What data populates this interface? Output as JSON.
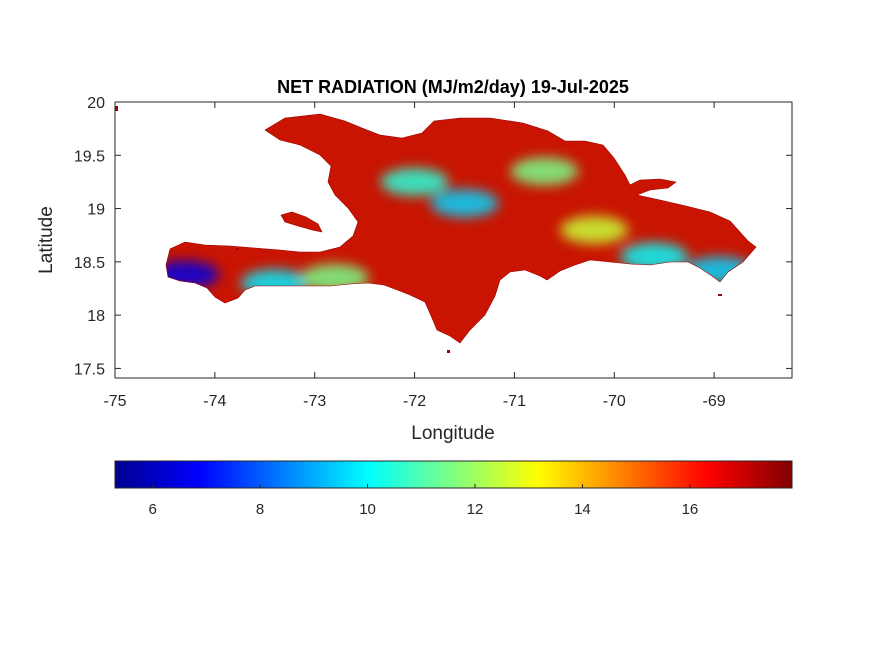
{
  "title": "NET RADIATION (MJ/m2/day) 19-Jul-2025",
  "xlabel": "Longitude",
  "ylabel": "Latitude",
  "x_ticks": [
    "-75",
    "-74",
    "-73",
    "-72",
    "-71",
    "-70",
    "-69"
  ],
  "y_ticks": [
    "20",
    "19.5",
    "19",
    "18.5",
    "18",
    "17.5"
  ],
  "colorbar": {
    "colormap": "jet",
    "range": [
      5.3,
      17.9
    ],
    "tick_labels": [
      "6",
      "8",
      "10",
      "12",
      "14",
      "16"
    ],
    "tick_values": [
      6,
      8,
      10,
      12,
      14,
      16
    ]
  },
  "chart_data": {
    "type": "heatmap",
    "title": "NET RADIATION (MJ/m2/day) 19-Jul-2025",
    "xlabel": "Longitude",
    "ylabel": "Latitude",
    "xlim": [
      -75,
      -68.22
    ],
    "ylim": [
      17.41,
      20
    ],
    "value_range": [
      5.3,
      17.9
    ],
    "grid": false,
    "region": "Hispaniola",
    "hotspots": [
      {
        "lon": -74.3,
        "lat": 18.38,
        "value": 6.5
      },
      {
        "lon": -71.5,
        "lat": 19.05,
        "value": 9.5
      },
      {
        "lon": -72.0,
        "lat": 19.25,
        "value": 10.5
      },
      {
        "lon": -69.6,
        "lat": 18.55,
        "value": 10.0
      },
      {
        "lon": -68.95,
        "lat": 18.42,
        "value": 9.5
      },
      {
        "lon": -73.4,
        "lat": 18.3,
        "value": 9.8
      },
      {
        "lon": -70.7,
        "lat": 19.35,
        "value": 11.5
      },
      {
        "lon": -72.8,
        "lat": 18.35,
        "value": 11.5
      },
      {
        "lon": -70.2,
        "lat": 18.8,
        "value": 12.5
      }
    ]
  }
}
